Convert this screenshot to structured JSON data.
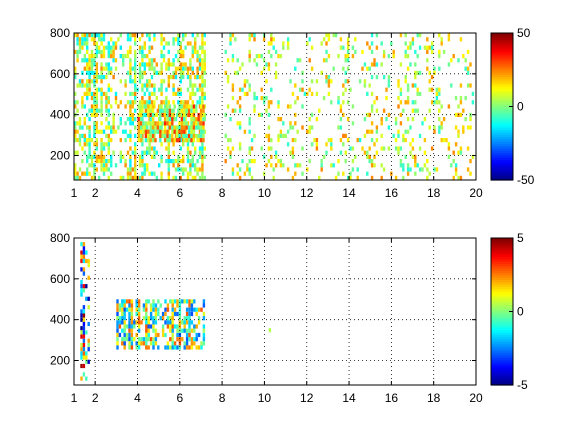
{
  "chart_data": [
    {
      "type": "heatmap",
      "title": "",
      "xlabel": "",
      "ylabel": "",
      "xlim": [
        1,
        20
      ],
      "ylim": [
        80,
        800
      ],
      "xticks": [
        1,
        2,
        4,
        6,
        8,
        10,
        12,
        14,
        16,
        18,
        20
      ],
      "yticks": [
        200,
        400,
        600,
        800
      ],
      "grid": true,
      "colorbar": {
        "min": -50,
        "max": 50,
        "ticks": [
          50,
          0,
          -50
        ]
      },
      "data_regions": [
        {
          "name": "",
          "x": [
            1,
            7.3
          ],
          "y": [
            80,
            800
          ],
          "density": 0.55,
          "values": [
            -15,
            25
          ]
        },
        {
          "name": "",
          "x": [
            4,
            7.2
          ],
          "y": [
            250,
            450
          ],
          "density": 0.85,
          "values": [
            -10,
            35
          ]
        },
        {
          "name": "",
          "x": [
            8,
            20
          ],
          "y": [
            80,
            800
          ],
          "density": 0.18,
          "values": [
            -10,
            25
          ]
        }
      ]
    },
    {
      "type": "heatmap",
      "title": "",
      "xlabel": "",
      "ylabel": "",
      "xlim": [
        1,
        20
      ],
      "ylim": [
        80,
        800
      ],
      "xticks": [
        1,
        2,
        4,
        6,
        8,
        10,
        12,
        14,
        16,
        18,
        20
      ],
      "yticks": [
        200,
        400,
        600,
        800
      ],
      "grid": true,
      "colorbar": {
        "min": -5,
        "max": 5,
        "ticks": [
          5,
          0,
          -5
        ]
      },
      "data_regions": [
        {
          "name": "",
          "x": [
            3,
            7.3
          ],
          "y": [
            250,
            500
          ],
          "density": 0.75,
          "values": [
            -3,
            3
          ]
        },
        {
          "name": "",
          "x": [
            1.3,
            1.8
          ],
          "y": [
            100,
            780
          ],
          "density": 0.5,
          "values": [
            -5,
            5
          ]
        },
        {
          "name": "",
          "x": [
            10.2,
            10.4
          ],
          "y": [
            200,
            400
          ],
          "density": 0.1,
          "values": [
            -1,
            1
          ]
        }
      ]
    }
  ]
}
